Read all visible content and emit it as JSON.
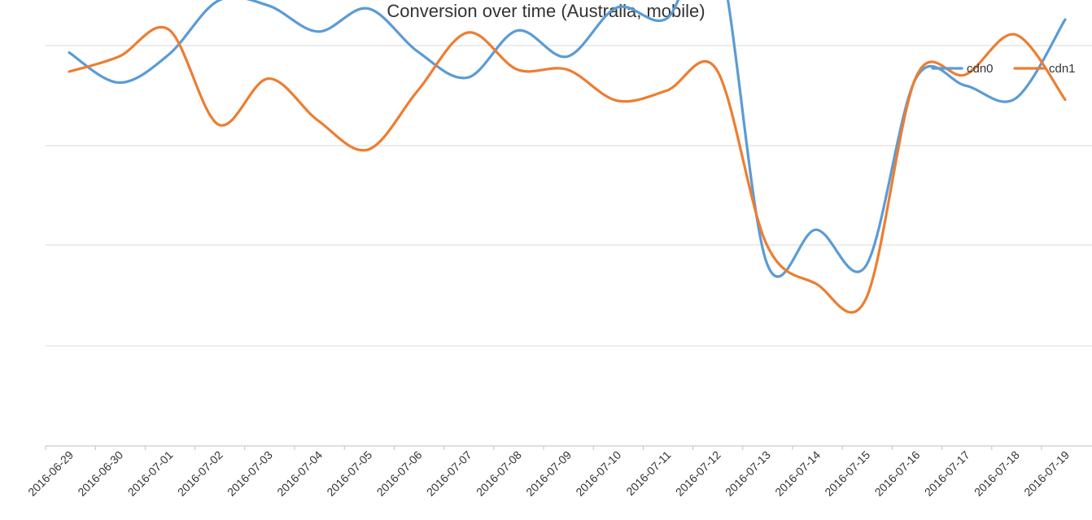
{
  "chart_data": {
    "type": "line",
    "title": "Conversion over time (Australia, mobile)",
    "xlabel": "",
    "ylabel": "",
    "categories": [
      "2016-06-29",
      "2016-06-30",
      "2016-07-01",
      "2016-07-02",
      "2016-07-03",
      "2016-07-04",
      "2016-07-05",
      "2016-07-06",
      "2016-07-07",
      "2016-07-08",
      "2016-07-09",
      "2016-07-10",
      "2016-07-11",
      "2016-07-12",
      "2016-07-13",
      "2016-07-14",
      "2016-07-15",
      "2016-07-16",
      "2016-07-17",
      "2016-07-18",
      "2016-07-19"
    ],
    "series": [
      {
        "name": "cdn0",
        "color": "#5b9bd5",
        "values": [
          2.93,
          2.63,
          2.91,
          3.45,
          3.4,
          3.14,
          3.37,
          2.94,
          2.68,
          3.15,
          2.89,
          3.38,
          3.27,
          3.98,
          0.84,
          1.16,
          0.8,
          2.67,
          2.6,
          2.47,
          3.26
        ]
      },
      {
        "name": "cdn1",
        "color": "#ed7d31",
        "values": [
          2.74,
          2.89,
          3.16,
          2.21,
          2.67,
          2.25,
          1.96,
          2.55,
          3.13,
          2.76,
          2.76,
          2.45,
          2.55,
          2.76,
          1.02,
          0.62,
          0.47,
          2.68,
          2.71,
          3.11,
          2.46
        ]
      }
    ],
    "ylim": [
      -1,
      3.0
    ],
    "ytick_values": [
      -1,
      0,
      1,
      2,
      3
    ],
    "grid": true,
    "smooth": true,
    "legend_position": "top-right"
  }
}
